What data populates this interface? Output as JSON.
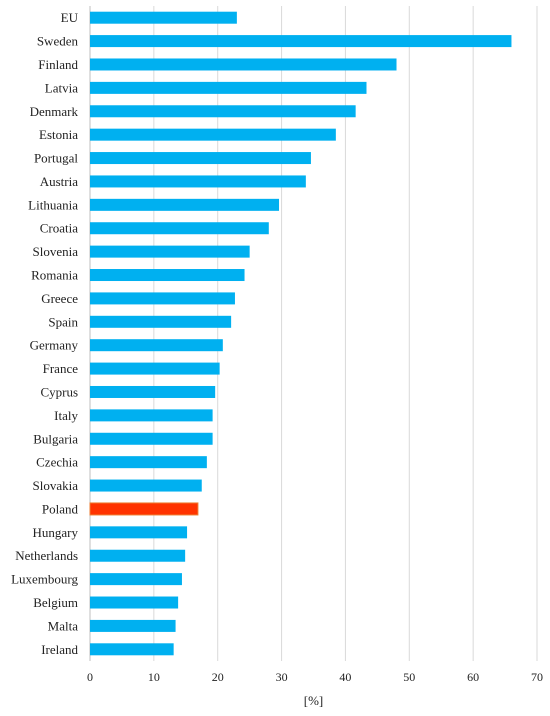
{
  "chart_data": {
    "type": "bar",
    "orientation": "horizontal",
    "categories": [
      "EU",
      "Sweden",
      "Finland",
      "Latvia",
      "Denmark",
      "Estonia",
      "Portugal",
      "Austria",
      "Lithuania",
      "Croatia",
      "Slovenia",
      "Romania",
      "Greece",
      "Spain",
      "Germany",
      "France",
      "Cyprus",
      "Italy",
      "Bulgaria",
      "Czechia",
      "Slovakia",
      "Poland",
      "Hungary",
      "Netherlands",
      "Luxembourg",
      "Belgium",
      "Malta",
      "Ireland"
    ],
    "values": [
      23.0,
      66.0,
      48.0,
      43.3,
      41.6,
      38.5,
      34.6,
      33.8,
      29.6,
      28.0,
      25.0,
      24.2,
      22.7,
      22.1,
      20.8,
      20.3,
      19.6,
      19.2,
      19.2,
      18.3,
      17.5,
      16.9,
      15.2,
      14.9,
      14.4,
      13.8,
      13.4,
      13.1
    ],
    "highlight_category": "Poland",
    "colors": {
      "bar": "#00b0f0",
      "highlight": "#ff3300",
      "highlight_edge": "#ed7d31",
      "grid": "#d9d9d9"
    },
    "xlim": [
      0,
      70
    ],
    "xticks": [
      0,
      10,
      20,
      30,
      40,
      50,
      60,
      70
    ],
    "xlabel": "[%]",
    "title": "",
    "grid": true,
    "legend": "none"
  }
}
